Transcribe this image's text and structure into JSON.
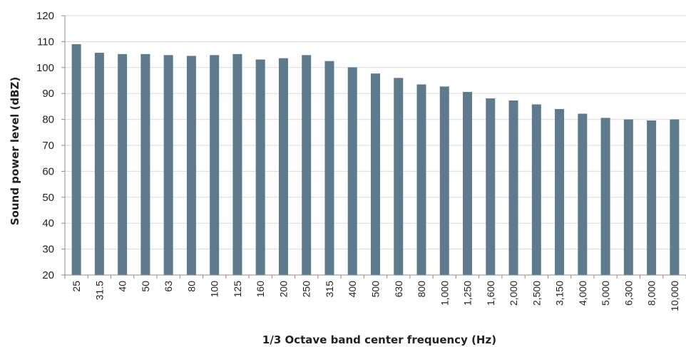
{
  "chart_data": {
    "type": "bar",
    "xlabel": "1/3 Octave band center frequency (Hz)",
    "ylabel": "Sound power  level (dBZ)",
    "ylim": [
      20,
      120
    ],
    "yticks": [
      20,
      30,
      40,
      50,
      60,
      70,
      80,
      90,
      100,
      110,
      120
    ],
    "grid": true,
    "bar_color": "#5d7b8d",
    "grid_color": "#d9d9d9",
    "categories": [
      "25",
      "31.5",
      "40",
      "50",
      "63",
      "80",
      "100",
      "125",
      "160",
      "200",
      "250",
      "315",
      "400",
      "500",
      "630",
      "800",
      "1,000",
      "1,250",
      "1,600",
      "2,000",
      "2,500",
      "3,150",
      "4,000",
      "5,000",
      "6,300",
      "8,000",
      "10,000"
    ],
    "values": [
      109,
      105.7,
      105.2,
      105.2,
      104.8,
      104.5,
      104.8,
      105.2,
      103.1,
      103.6,
      104.8,
      102.5,
      100.1,
      97.7,
      96.0,
      93.5,
      92.7,
      90.6,
      88.1,
      87.3,
      85.8,
      84.0,
      82.2,
      80.6,
      80.0,
      79.6,
      80.0
    ]
  }
}
